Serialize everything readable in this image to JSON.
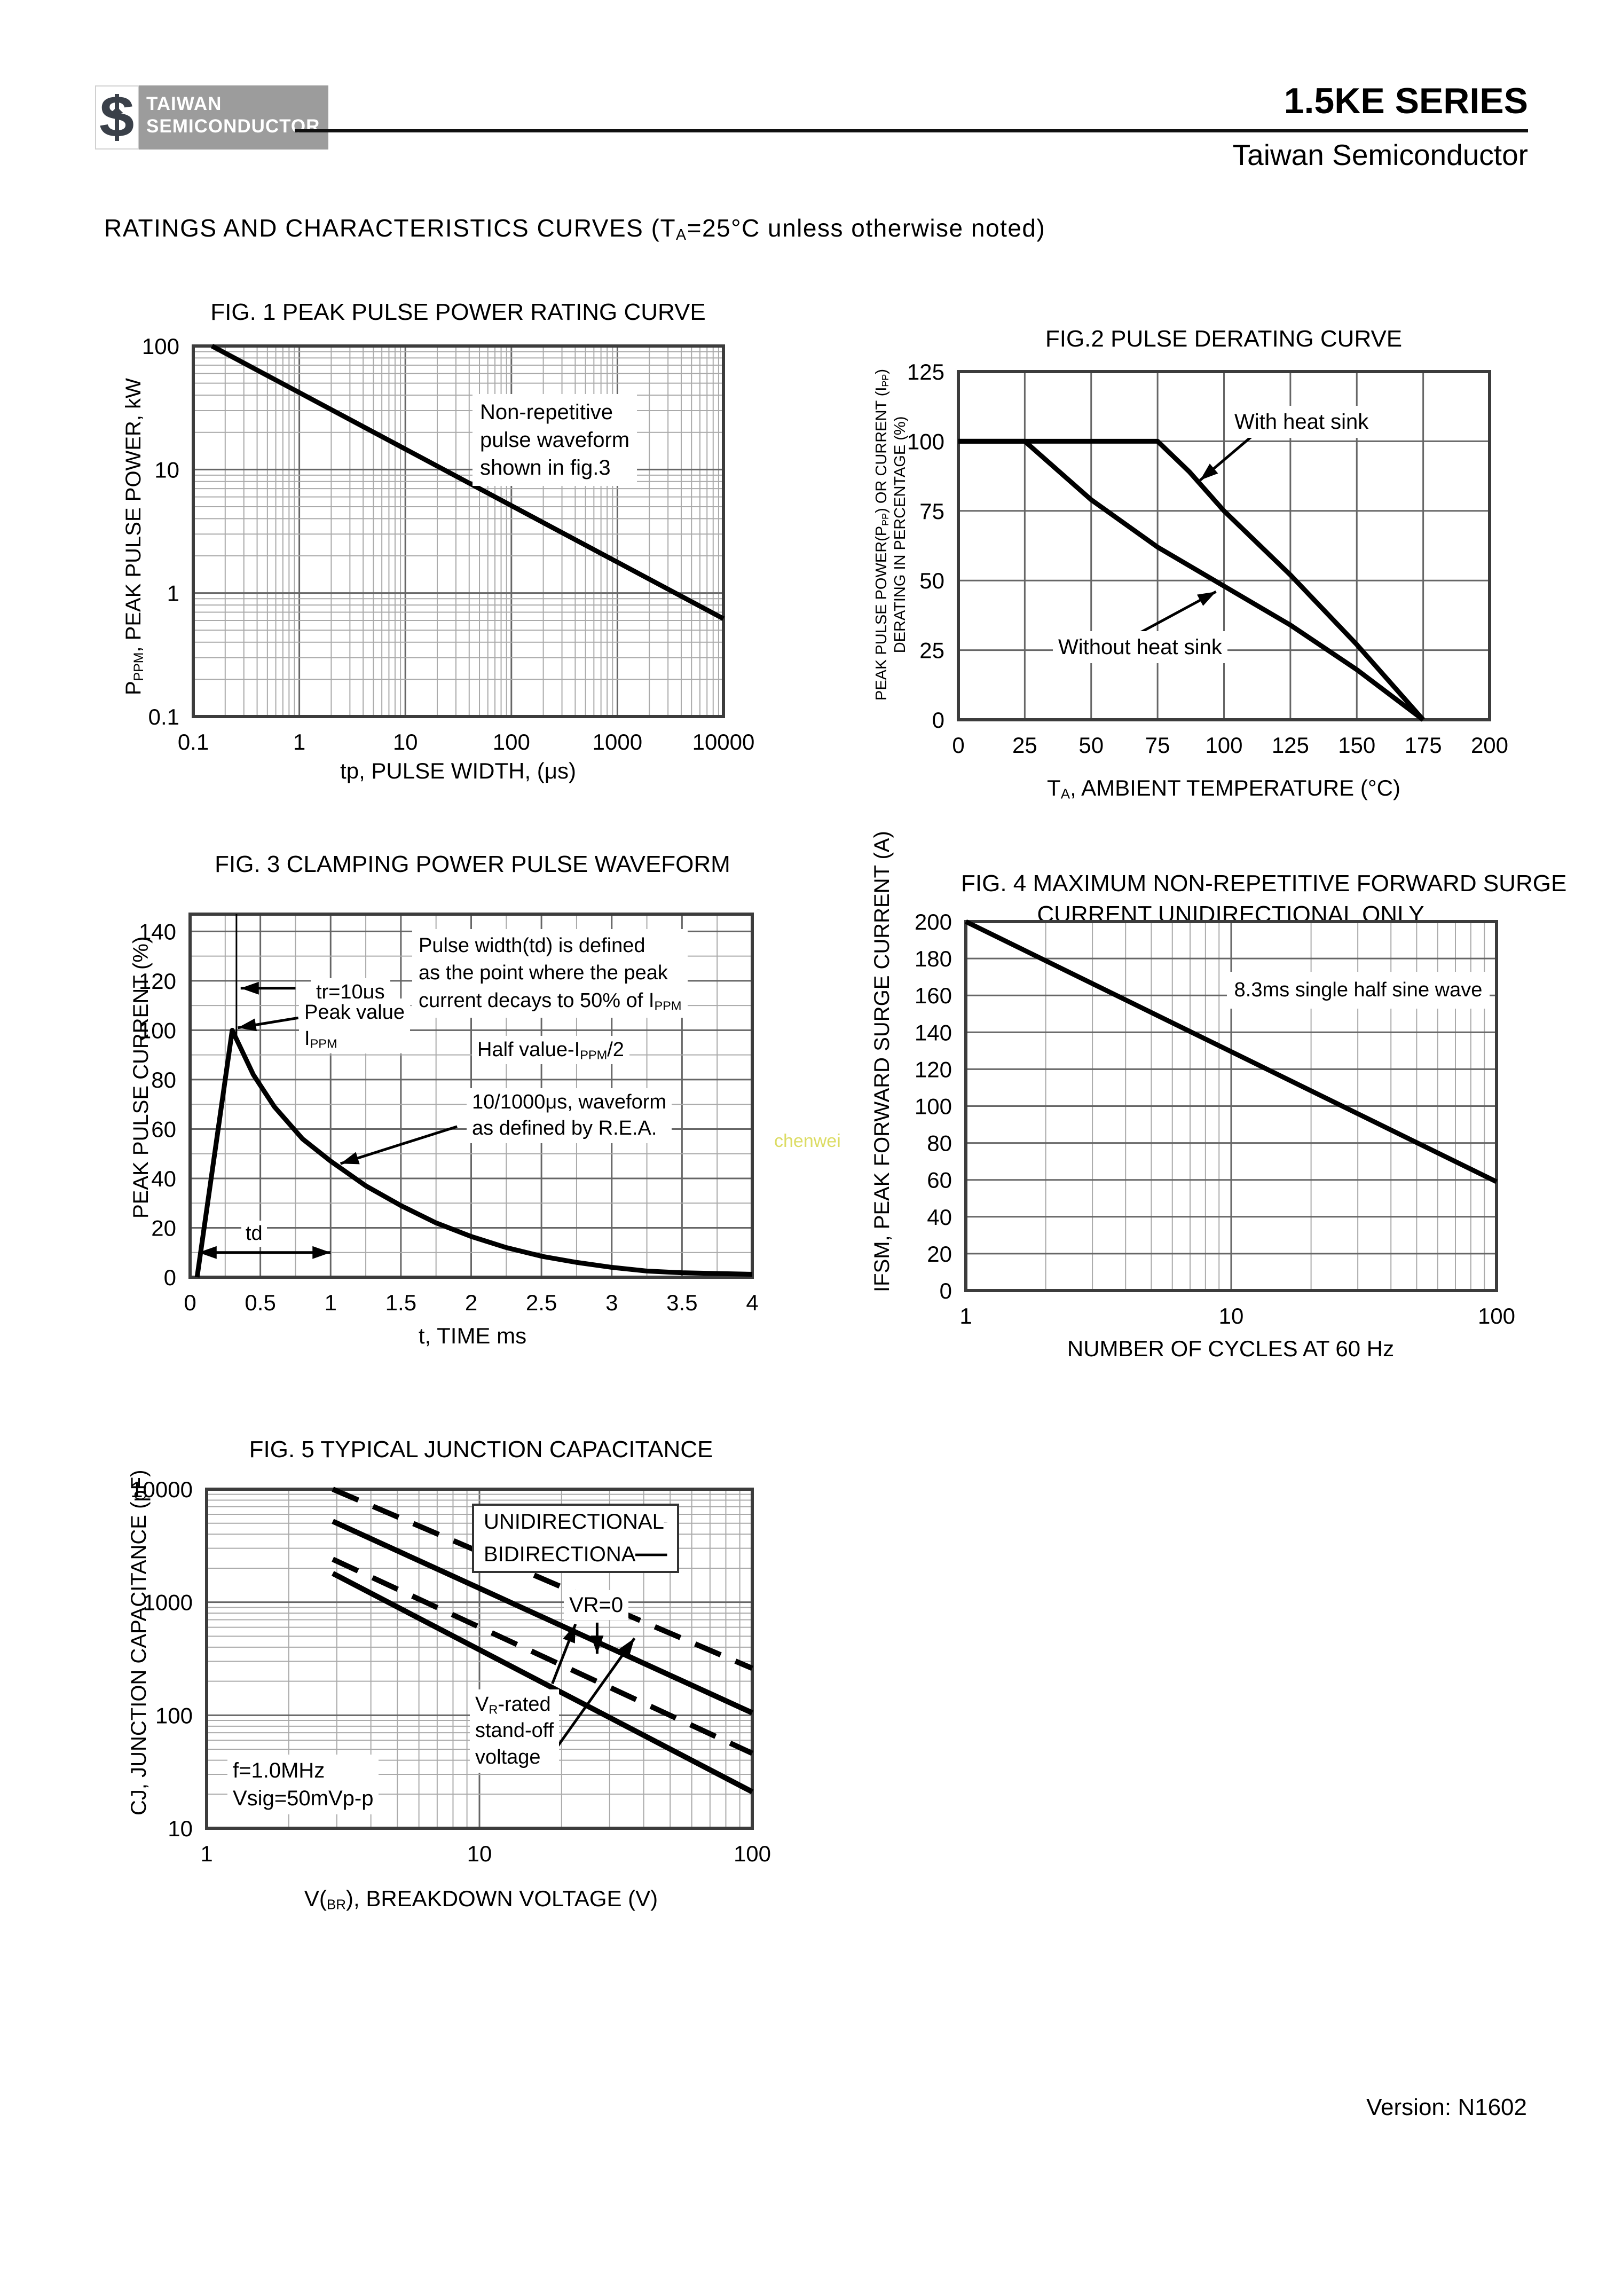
{
  "header": {
    "logo_line1": "TAIWAN",
    "logo_line2": "SEMICONDUCTOR",
    "series_title": "1.5KE SERIES",
    "company": "Taiwan Semiconductor"
  },
  "heading": {
    "main": "RATINGS AND CHARACTERISTICS CURVES",
    "paren_a": " (T",
    "paren_sub": "A",
    "paren_b": "=25°C unless otherwise noted)"
  },
  "footer": {
    "version": "Version: N1602"
  },
  "watermark": "chenwei",
  "chart_data": [
    {
      "id": "fig1",
      "type": "line",
      "title": "FIG. 1 PEAK PULSE POWER RATING CURVE",
      "xlabel": "tp, PULSE WIDTH, (μs)",
      "ylabel": "PPPM, PEAK PULSE POWER, kW",
      "ylabel_parts": {
        "a": "P",
        "sub": "PPM",
        "b": ", PEAK PULSE POWER, kW"
      },
      "xscale": "log",
      "xlim": [
        0.1,
        10000
      ],
      "yscale": "log",
      "ylim": [
        0.1,
        100
      ],
      "grid": "log-log",
      "xticks": {
        "values": [
          0.1,
          1,
          10,
          100,
          1000,
          10000
        ],
        "labels": [
          "0.1",
          "1",
          "10",
          "100",
          "1000",
          "10000"
        ]
      },
      "yticks": {
        "values": [
          100,
          10,
          1,
          0.1
        ],
        "labels": [
          "100",
          "10",
          "1",
          "0.1"
        ]
      },
      "series": [
        {
          "name": "peak-pulse-power",
          "style": "solid",
          "width": 9,
          "points": [
            [
              0.15,
              100
            ],
            [
              10000,
              0.62
            ]
          ]
        }
      ],
      "annotations": {
        "l1": "Non-repetitive",
        "l2": "pulse waveform",
        "l3": "shown in fig.3"
      }
    },
    {
      "id": "fig2",
      "type": "line",
      "title": "FIG.2 PULSE DERATING CURVE",
      "xlabel": "TA, AMBIENT TEMPERATURE (°C)",
      "xlabel_parts": {
        "a": "T",
        "sub": "A",
        "b": ", AMBIENT TEMPERATURE (°C)"
      },
      "ylabel": "PEAK PULSE POWER(PPP) OR CURRENT (IPP) DERATING IN PERCENTAGE (%)",
      "ylabel_parts": {
        "l1a": "PEAK PULSE POWER(P",
        "l1s1": "PP",
        "l1b": ") OR CURRENT (I",
        "l1s2": "PP",
        "l1c": ")",
        "l2": "DERATING IN PERCENTAGE (%)"
      },
      "xscale": "linear",
      "xlim": [
        0,
        200
      ],
      "xminor": 25,
      "xmajor": 25,
      "yscale": "linear",
      "ylim": [
        0,
        125
      ],
      "yminor": 25,
      "ymajor": 25,
      "xticks": {
        "values": [
          0,
          25,
          50,
          75,
          100,
          125,
          150,
          175,
          200
        ],
        "labels": [
          "0",
          "25",
          "50",
          "75",
          "100",
          "125",
          "150",
          "175",
          "200"
        ]
      },
      "yticks": {
        "values": [
          125,
          100,
          75,
          50,
          25,
          0
        ],
        "labels": [
          "125",
          "100",
          "75",
          "50",
          "25",
          "0"
        ]
      },
      "series": [
        {
          "name": "with-heat-sink",
          "width": 9,
          "points": [
            [
              0,
              100
            ],
            [
              75,
              100
            ],
            [
              87,
              89
            ],
            [
              100,
              75
            ],
            [
              125,
              52
            ],
            [
              150,
              27
            ],
            [
              175,
              0
            ]
          ]
        },
        {
          "name": "without-heat-sink",
          "width": 9,
          "points": [
            [
              0,
              100
            ],
            [
              25,
              100
            ],
            [
              50,
              79
            ],
            [
              75,
              62
            ],
            [
              100,
              48
            ],
            [
              125,
              34
            ],
            [
              150,
              18
            ],
            [
              175,
              0
            ]
          ]
        }
      ],
      "arrows": [
        {
          "from": [
            112,
            103
          ],
          "to": [
            91,
            86
          ]
        },
        {
          "from": [
            64,
            29
          ],
          "to": [
            97,
            46
          ]
        }
      ],
      "annotations": {
        "with": "With heat sink",
        "without": "Without heat sink"
      }
    },
    {
      "id": "fig3",
      "type": "line",
      "title": "FIG. 3 CLAMPING POWER PULSE WAVEFORM",
      "xlabel": "t, TIME ms",
      "ylabel": "PEAK PULSE CURRENT (%)",
      "xscale": "linear",
      "xlim": [
        0,
        4
      ],
      "xminor": 0.25,
      "xmajor": 0.5,
      "yscale": "linear",
      "ylim": [
        0,
        147
      ],
      "yminor": 10,
      "ymajor": 20,
      "xticks": {
        "values": [
          0,
          0.5,
          1,
          1.5,
          2,
          2.5,
          3,
          3.5,
          4
        ],
        "labels": [
          "0",
          "0.5",
          "1",
          "1.5",
          "2",
          "2.5",
          "3",
          "3.5",
          "4"
        ]
      },
      "yticks": {
        "values": [
          140,
          120,
          100,
          80,
          60,
          40,
          20,
          0
        ],
        "labels": [
          "140",
          "120",
          "100",
          "80",
          "60",
          "40",
          "20",
          "0"
        ]
      },
      "series": [
        {
          "name": "pulse-waveform",
          "width": 9,
          "points": [
            [
              0.05,
              0
            ],
            [
              0.3,
              100
            ],
            [
              0.45,
              82
            ],
            [
              0.6,
              69
            ],
            [
              0.8,
              56
            ],
            [
              1,
              47
            ],
            [
              1.25,
              37
            ],
            [
              1.5,
              29
            ],
            [
              1.75,
              22
            ],
            [
              2,
              16.5
            ],
            [
              2.25,
              12
            ],
            [
              2.5,
              8.5
            ],
            [
              2.75,
              6
            ],
            [
              3,
              4
            ],
            [
              3.25,
              2.5
            ],
            [
              3.5,
              1.8
            ],
            [
              4,
              1.2
            ]
          ]
        },
        {
          "name": "tr-marker-line",
          "width": 3,
          "points": [
            [
              0.33,
              147
            ],
            [
              0.33,
              98
            ]
          ]
        }
      ],
      "arrows": [
        {
          "from": [
            0.75,
            117
          ],
          "to": [
            0.36,
            117
          ]
        },
        {
          "from": [
            0.77,
            105
          ],
          "to": [
            0.34,
            101
          ]
        },
        {
          "from": [
            1.9,
            61
          ],
          "to": [
            1.07,
            46
          ]
        },
        {
          "from": [
            0.06,
            10
          ],
          "to": [
            1.0,
            10
          ],
          "heads": "both"
        }
      ],
      "annotations": {
        "tr": "tr=10μs",
        "pw1": "Pulse width(td) is defined",
        "pw2": "as the point where the peak",
        "pw3a": "current decays to 50% of I",
        "pw3sub": "PPM",
        "peak1": "Peak value",
        "peak2a": "I",
        "peak2sub": "PPM",
        "halfa": "Half value-I",
        "halfsub": "PPM",
        "halfb": "/2",
        "rea1": "10/1000μs, waveform",
        "rea2": "as defined by R.E.A.",
        "td": "td"
      }
    },
    {
      "id": "fig4",
      "type": "line",
      "title": "FIG. 4 MAXIMUM  NON-REPETITIVE FORWARD SURGE CURRENT UNIDIRECTIONAL ONLY",
      "title_l1": "FIG. 4 MAXIMUM  NON-REPETITIVE FORWARD SURGE",
      "title_l2": "CURRENT UNIDIRECTIONAL ONLY",
      "xlabel": "NUMBER OF CYCLES AT 60 Hz",
      "ylabel": "IFSM, PEAK FORWARD SURGE CURRENT (A)",
      "xscale": "log",
      "xlim": [
        1,
        100
      ],
      "yscale": "linear",
      "ylim": [
        0,
        200
      ],
      "yminor": 20,
      "ymajor": 20,
      "xticks": {
        "values": [
          1,
          10,
          100
        ],
        "labels": [
          "1",
          "10",
          "100"
        ]
      },
      "yticks": {
        "values": [
          200,
          180,
          160,
          140,
          120,
          100,
          80,
          60,
          40,
          20,
          0
        ],
        "labels": [
          "200",
          "180",
          "160",
          "140",
          "120",
          "100",
          "80",
          "60",
          "40",
          "20",
          "0"
        ]
      },
      "series": [
        {
          "name": "surge-current",
          "width": 9,
          "points": [
            [
              1,
              200
            ],
            [
              100,
              59
            ]
          ]
        }
      ],
      "annotations": {
        "note": "8.3ms single half sine wave"
      }
    },
    {
      "id": "fig5",
      "type": "line",
      "title": "FIG. 5 TYPICAL JUNCTION CAPACITANCE",
      "xlabel": "V(BR), BREAKDOWN VOLTAGE (V)",
      "xlabel_parts": {
        "a": "V(",
        "sub": "BR",
        "b": "), BREAKDOWN VOLTAGE (V)"
      },
      "ylabel": "CJ, JUNCTION CAPACITANCE (pF)",
      "xscale": "log",
      "xlim": [
        1,
        100
      ],
      "yscale": "log",
      "ylim": [
        10,
        10000
      ],
      "xticks": {
        "values": [
          1,
          10,
          100
        ],
        "labels": [
          "1",
          "10",
          "100"
        ]
      },
      "yticks": {
        "values": [
          10000,
          1000,
          100,
          10
        ],
        "labels": [
          "10000",
          "1000",
          "100",
          "10"
        ]
      },
      "series": [
        {
          "name": "unidirectional-vr0",
          "style": "dashed",
          "width": 10,
          "points": [
            [
              2.9,
              10000
            ],
            [
              100,
              260
            ]
          ]
        },
        {
          "name": "bidirectional-vr0",
          "style": "solid",
          "width": 10,
          "points": [
            [
              2.9,
              5200
            ],
            [
              100,
              105
            ]
          ]
        },
        {
          "name": "unidirectional-vr-rated",
          "style": "dashed",
          "width": 10,
          "points": [
            [
              2.9,
              2400
            ],
            [
              100,
              46
            ]
          ]
        },
        {
          "name": "bidirectional-vr-rated",
          "style": "solid",
          "width": 10,
          "points": [
            [
              2.9,
              1800
            ],
            [
              100,
              21
            ]
          ]
        }
      ],
      "arrows": [
        {
          "from": [
            27,
            660
          ],
          "to": [
            27,
            350
          ]
        },
        {
          "from": [
            18.5,
            190
          ],
          "to": [
            22.5,
            640
          ]
        },
        {
          "from": [
            19,
            50
          ],
          "to": [
            37,
            480
          ]
        }
      ],
      "annotations": {
        "legend_uni": "UNIDIRECTIONAL",
        "legend_bi": "BIDIRECTIONA",
        "vr0": "VR=0",
        "cond1": "f=1.0MHz",
        "cond2": "Vsig=50mVp-p",
        "vr1a": "V",
        "vr1sub": "R",
        "vr1b": "-rated",
        "vr2": "stand-off",
        "vr3": "voltage"
      }
    }
  ]
}
